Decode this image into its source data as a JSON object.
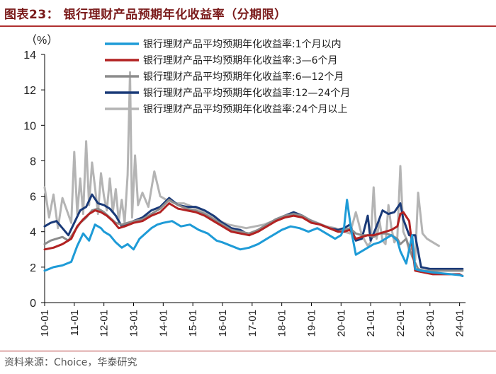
{
  "title": "图表23：  银行理财产品预期年化收益率（分期限）",
  "source": "资料来源：Choice，华泰研究",
  "chart_data": {
    "type": "line",
    "title": "图表23：  银行理财产品预期年化收益率（分期限）",
    "ylabel": "（%）",
    "xlabel": "",
    "ylim": [
      0,
      14
    ],
    "yticks": [
      0,
      2,
      4,
      6,
      8,
      10,
      12,
      14
    ],
    "xlim": [
      2010.0,
      2024.2
    ],
    "xticks": [
      "10-01",
      "11-01",
      "12-01",
      "13-01",
      "14-01",
      "15-01",
      "16-01",
      "17-01",
      "18-01",
      "19-01",
      "20-01",
      "21-01",
      "22-01",
      "23-01",
      "24-01"
    ],
    "grid": false,
    "legend_position": "top-right",
    "series": [
      {
        "name": "银行理财产品平均预期年化收益率:1个月以内",
        "color": "#1e9bd7",
        "x": [
          2010.0,
          2010.3,
          2010.6,
          2010.9,
          2011.1,
          2011.3,
          2011.5,
          2011.7,
          2011.9,
          2012.0,
          2012.2,
          2012.4,
          2012.6,
          2012.8,
          2013.0,
          2013.2,
          2013.4,
          2013.6,
          2013.8,
          2014.0,
          2014.3,
          2014.6,
          2014.9,
          2015.2,
          2015.5,
          2015.8,
          2016.0,
          2016.3,
          2016.6,
          2016.9,
          2017.2,
          2017.5,
          2017.8,
          2018.0,
          2018.3,
          2018.6,
          2018.9,
          2019.2,
          2019.5,
          2019.8,
          2020.0,
          2020.1,
          2020.2,
          2020.35,
          2020.5,
          2020.7,
          2020.9,
          2021.1,
          2021.3,
          2021.5,
          2021.7,
          2021.9,
          2022.0,
          2022.2,
          2022.4,
          2022.5,
          2022.7,
          2022.9,
          2023.1,
          2023.4,
          2023.7,
          2024.0,
          2024.1
        ],
        "values": [
          1.8,
          2.0,
          2.1,
          2.3,
          3.2,
          3.9,
          3.5,
          4.4,
          4.2,
          4.0,
          3.8,
          3.4,
          3.1,
          3.3,
          3.0,
          3.6,
          3.9,
          4.2,
          4.4,
          4.5,
          4.6,
          4.3,
          4.4,
          4.1,
          3.9,
          3.5,
          3.4,
          3.2,
          3.0,
          3.1,
          3.3,
          3.6,
          3.9,
          4.1,
          4.3,
          4.2,
          4.0,
          4.2,
          3.9,
          3.6,
          3.8,
          4.2,
          5.8,
          4.0,
          2.7,
          2.9,
          3.1,
          3.3,
          3.4,
          3.6,
          3.8,
          3.5,
          2.9,
          2.2,
          3.8,
          1.9,
          1.8,
          1.75,
          1.7,
          1.65,
          1.6,
          1.55,
          1.5
        ]
      },
      {
        "name": "银行理财产品平均预期年化收益率:3—6个月",
        "color": "#b22222",
        "x": [
          2010.0,
          2010.3,
          2010.6,
          2010.9,
          2011.1,
          2011.3,
          2011.5,
          2011.7,
          2011.9,
          2012.1,
          2012.3,
          2012.5,
          2012.7,
          2013.0,
          2013.3,
          2013.6,
          2013.9,
          2014.2,
          2014.5,
          2014.8,
          2015.1,
          2015.4,
          2015.7,
          2016.0,
          2016.3,
          2016.6,
          2016.9,
          2017.2,
          2017.5,
          2017.8,
          2018.1,
          2018.4,
          2018.7,
          2019.0,
          2019.3,
          2019.6,
          2019.9,
          2020.1,
          2020.3,
          2020.5,
          2020.7,
          2020.9,
          2021.1,
          2021.3,
          2021.5,
          2021.7,
          2021.9,
          2022.0,
          2022.1,
          2022.3,
          2022.5,
          2022.8,
          2023.1,
          2023.4,
          2023.7,
          2024.0,
          2024.1
        ],
        "values": [
          3.0,
          3.1,
          3.3,
          3.6,
          4.3,
          4.7,
          5.0,
          5.2,
          5.1,
          4.9,
          4.6,
          4.2,
          4.3,
          4.5,
          4.6,
          4.9,
          5.1,
          5.6,
          5.3,
          5.2,
          5.1,
          4.9,
          4.6,
          4.3,
          4.0,
          3.9,
          3.8,
          4.0,
          4.3,
          4.6,
          4.8,
          4.9,
          4.8,
          4.5,
          4.4,
          4.2,
          4.0,
          4.0,
          4.1,
          3.6,
          3.7,
          3.8,
          3.8,
          3.9,
          4.0,
          4.1,
          4.3,
          5.0,
          5.1,
          4.6,
          1.8,
          1.7,
          1.6,
          1.6,
          1.6,
          1.6,
          1.5
        ]
      },
      {
        "name": "银行理财产品平均预期年化收益率:6—12个月",
        "color": "#8c8c8c",
        "x": [
          2010.0,
          2010.2,
          2010.4,
          2010.6,
          2010.8,
          2011.0,
          2011.2,
          2011.4,
          2011.6,
          2011.8,
          2012.0,
          2012.2,
          2012.4,
          2012.6,
          2012.8,
          2013.0,
          2013.3,
          2013.6,
          2013.9,
          2014.2,
          2014.5,
          2014.8,
          2015.1,
          2015.4,
          2015.7,
          2016.0,
          2016.3,
          2016.6,
          2016.9,
          2017.2,
          2017.5,
          2017.8,
          2018.1,
          2018.4,
          2018.7,
          2019.0,
          2019.3,
          2019.6,
          2019.9,
          2020.1,
          2020.3,
          2020.5,
          2020.7,
          2020.9,
          2021.1,
          2021.3,
          2021.5,
          2021.7,
          2021.9,
          2022.0,
          2022.2,
          2022.4,
          2022.6,
          2022.8,
          2023.1,
          2023.4,
          2023.7,
          2024.0,
          2024.1
        ],
        "values": [
          3.3,
          3.5,
          3.6,
          3.7,
          3.5,
          4.0,
          4.5,
          4.8,
          5.2,
          5.3,
          5.1,
          4.8,
          4.5,
          4.4,
          4.5,
          4.6,
          4.7,
          5.0,
          5.3,
          5.8,
          5.5,
          5.3,
          5.2,
          5.0,
          4.7,
          4.4,
          4.1,
          4.0,
          3.9,
          4.1,
          4.4,
          4.7,
          4.9,
          5.0,
          4.9,
          4.6,
          4.4,
          4.2,
          4.0,
          4.1,
          4.2,
          3.9,
          3.8,
          3.8,
          3.7,
          3.9,
          3.9,
          3.8,
          3.6,
          3.3,
          3.6,
          2.6,
          1.9,
          1.8,
          1.8,
          1.8,
          1.8,
          1.8,
          1.8
        ]
      },
      {
        "name": "银行理财产品平均预期年化收益率:12—24个月",
        "color": "#1a3a78",
        "x": [
          2010.0,
          2010.2,
          2010.4,
          2010.6,
          2010.8,
          2011.0,
          2011.2,
          2011.4,
          2011.6,
          2011.8,
          2012.0,
          2012.2,
          2012.4,
          2012.6,
          2012.8,
          2013.0,
          2013.3,
          2013.6,
          2013.9,
          2014.2,
          2014.5,
          2014.8,
          2015.1,
          2015.4,
          2015.7,
          2016.0,
          2016.3,
          2016.6,
          2016.9,
          2017.2,
          2017.5,
          2017.8,
          2018.1,
          2018.4,
          2018.7,
          2019.0,
          2019.3,
          2019.6,
          2019.9,
          2020.1,
          2020.3,
          2020.5,
          2020.7,
          2020.9,
          2021.0,
          2021.2,
          2021.4,
          2021.6,
          2021.8,
          2022.0,
          2022.1,
          2022.3,
          2022.5,
          2022.7,
          2023.0,
          2023.3,
          2023.6,
          2023.9,
          2024.1
        ],
        "values": [
          4.3,
          4.5,
          4.6,
          4.2,
          3.8,
          4.5,
          5.2,
          5.4,
          6.1,
          5.6,
          5.5,
          5.3,
          4.9,
          4.3,
          4.4,
          4.6,
          4.8,
          5.2,
          5.4,
          5.9,
          5.5,
          5.4,
          5.4,
          5.2,
          4.9,
          4.5,
          4.2,
          4.1,
          3.8,
          4.1,
          4.4,
          4.7,
          4.9,
          5.1,
          4.9,
          4.6,
          4.4,
          4.2,
          4.1,
          4.2,
          4.4,
          3.5,
          3.6,
          4.9,
          3.5,
          4.3,
          5.2,
          5.0,
          5.1,
          5.6,
          4.7,
          3.8,
          3.8,
          2.0,
          1.9,
          1.9,
          1.9,
          1.9,
          1.9
        ]
      },
      {
        "name": "银行理财产品平均预期年化收益率:24个月以上",
        "color": "#b4b4b4",
        "x": [
          2010.0,
          2010.15,
          2010.3,
          2010.45,
          2010.6,
          2010.75,
          2010.9,
          2011.0,
          2011.1,
          2011.2,
          2011.3,
          2011.4,
          2011.5,
          2011.6,
          2011.7,
          2011.8,
          2011.9,
          2012.0,
          2012.1,
          2012.2,
          2012.3,
          2012.4,
          2012.5,
          2012.6,
          2012.7,
          2012.8,
          2012.88,
          2012.95,
          2013.05,
          2013.15,
          2013.3,
          2013.5,
          2013.7,
          2013.9,
          2014.1,
          2014.4,
          2014.7,
          2015.0,
          2015.3,
          2015.6,
          2015.9,
          2016.2,
          2016.5,
          2016.8,
          2017.1,
          2017.4,
          2017.7,
          2018.0,
          2018.3,
          2018.6,
          2018.9,
          2019.2,
          2019.5,
          2019.8,
          2020.1,
          2020.3,
          2020.5,
          2020.7,
          2020.9,
          2021.0,
          2021.1,
          2021.2,
          2021.3,
          2021.4,
          2021.5,
          2021.6,
          2021.7,
          2021.8,
          2021.9,
          2022.0,
          2022.1,
          2022.2,
          2022.3,
          2022.4,
          2022.5,
          2022.6,
          2022.75,
          2022.9,
          2023.1,
          2023.3
        ],
        "values": [
          6.5,
          4.8,
          6.1,
          4.2,
          5.9,
          5.2,
          4.5,
          8.5,
          5.0,
          7.0,
          5.0,
          9.1,
          5.5,
          7.9,
          6.5,
          5.0,
          7.3,
          6.0,
          5.2,
          7.0,
          5.1,
          6.4,
          4.6,
          5.8,
          4.5,
          7.2,
          13.0,
          4.8,
          8.3,
          5.5,
          6.2,
          5.4,
          7.4,
          6.0,
          5.8,
          5.6,
          5.6,
          5.4,
          5.2,
          4.9,
          4.6,
          4.4,
          4.3,
          4.2,
          4.3,
          4.4,
          4.6,
          4.8,
          5.0,
          4.9,
          4.7,
          4.5,
          4.3,
          4.2,
          4.0,
          3.9,
          5.1,
          3.8,
          3.2,
          3.4,
          6.5,
          3.6,
          4.6,
          3.5,
          3.3,
          5.5,
          4.2,
          3.4,
          3.7,
          7.7,
          4.0,
          3.6,
          2.9,
          3.1,
          2.4,
          6.2,
          3.9,
          3.6,
          3.4,
          3.2
        ]
      }
    ]
  }
}
